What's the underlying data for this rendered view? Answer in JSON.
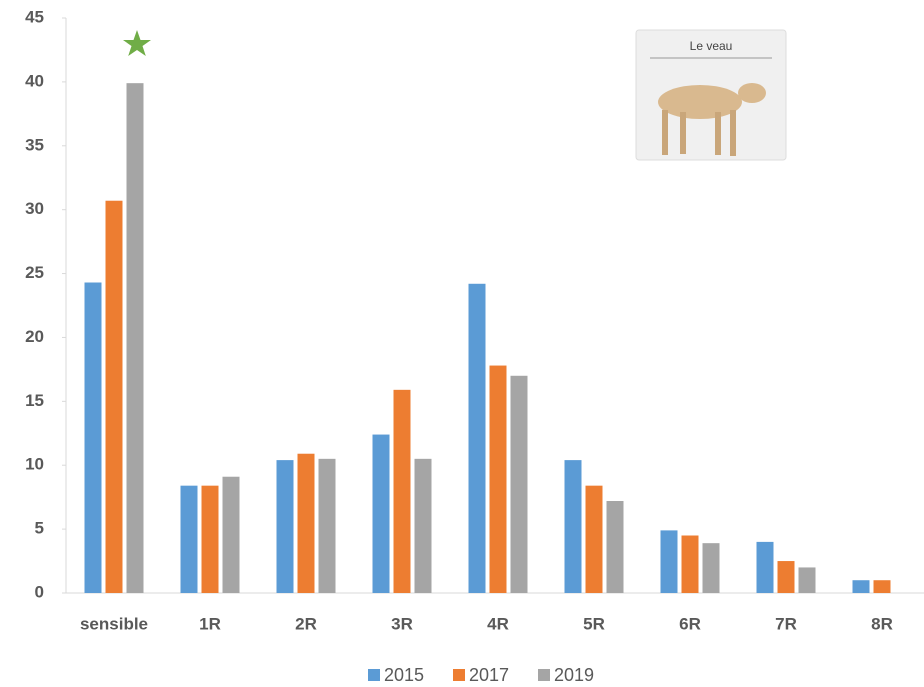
{
  "chart_data": {
    "type": "bar",
    "categories": [
      "sensible",
      "1R",
      "2R",
      "3R",
      "4R",
      "5R",
      "6R",
      "7R",
      "8R"
    ],
    "series": [
      {
        "name": "2015",
        "color": "#5b9bd5",
        "values": [
          24.3,
          8.4,
          10.4,
          12.4,
          24.2,
          10.4,
          4.9,
          4.0,
          1.0
        ]
      },
      {
        "name": "2017",
        "color": "#ed7d31",
        "values": [
          30.7,
          8.4,
          10.9,
          15.9,
          17.8,
          8.4,
          4.5,
          2.5,
          1.0
        ]
      },
      {
        "name": "2019",
        "color": "#a5a5a5",
        "values": [
          39.9,
          9.1,
          10.5,
          10.5,
          17.0,
          7.2,
          3.9,
          2.0,
          null
        ]
      }
    ],
    "ylim": [
      0,
      45
    ],
    "yticks": [
      0,
      5,
      10,
      15,
      20,
      25,
      30,
      35,
      40,
      45
    ],
    "legend": "bottom",
    "image_label": "Le veau"
  }
}
